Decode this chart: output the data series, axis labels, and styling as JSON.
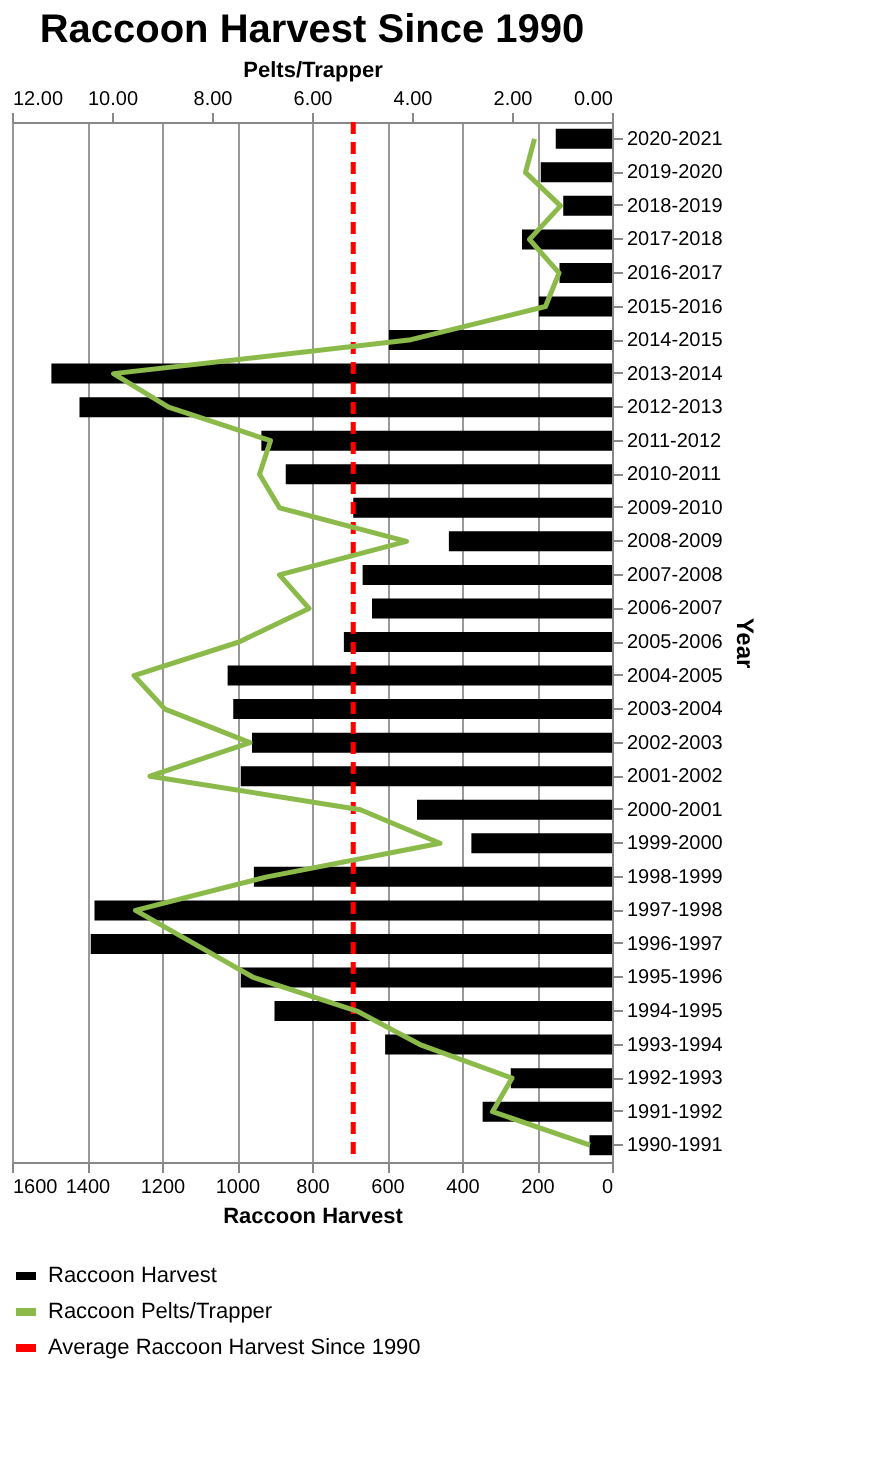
{
  "chart_data": {
    "type": "bar",
    "orientation": "horizontal",
    "title": "Raccoon Harvest Since 1990",
    "xlabel": "Raccoon Harvest",
    "ylabel": "Year",
    "x2label": "Pelts/Trapper",
    "categories": [
      "2020-2021",
      "2019-2020",
      "2018-2019",
      "2017-2018",
      "2016-2017",
      "2015-2016",
      "2014-2015",
      "2013-2014",
      "2012-2013",
      "2011-2012",
      "2010-2011",
      "2009-2010",
      "2008-2009",
      "2007-2008",
      "2006-2007",
      "2005-2006",
      "2004-2005",
      "2003-2004",
      "2002-2003",
      "2001-2002",
      "2000-2001",
      "1999-2000",
      "1998-1999",
      "1997-1998",
      "1996-1997",
      "1995-1996",
      "1994-1995",
      "1993-1994",
      "1992-1993",
      "1991-1992",
      "1990-1991"
    ],
    "series": [
      {
        "name": "Raccoon Harvest",
        "color": "#000000",
        "values": [
          150,
          190,
          130,
          240,
          140,
          195,
          595,
          1495,
          1420,
          935,
          870,
          690,
          435,
          665,
          640,
          715,
          1025,
          1010,
          960,
          990,
          520,
          375,
          955,
          1380,
          1390,
          990,
          900,
          605,
          270,
          345,
          60
        ]
      },
      {
        "name": "Raccoon Pelts/Trapper",
        "type": "line",
        "axis": "x2",
        "color": "#8cba4a",
        "values": [
          1.55,
          1.73,
          1.03,
          1.65,
          1.06,
          1.33,
          4.06,
          9.97,
          8.87,
          6.83,
          7.05,
          6.65,
          4.11,
          6.65,
          6.06,
          7.46,
          9.56,
          8.94,
          7.24,
          9.24,
          5.03,
          3.44,
          6.9,
          9.53,
          8.35,
          7.17,
          5.1,
          3.84,
          2.0,
          2.39,
          0.44
        ]
      }
    ],
    "ref_lines": [
      {
        "axis": "x",
        "value": 690,
        "label": "Average Raccoon Harvest Since 1990",
        "color": "#ff0000",
        "line_style": "dashed"
      }
    ],
    "xlim": [
      1600,
      0
    ],
    "xticks": [
      0,
      200,
      400,
      600,
      800,
      1000,
      1200,
      1400,
      1600
    ],
    "x2lim": [
      12,
      0
    ],
    "x2ticks": [
      {
        "value": 0,
        "label": "0.00"
      },
      {
        "value": 2,
        "label": "2.00"
      },
      {
        "value": 4,
        "label": "4.00"
      },
      {
        "value": 6,
        "label": "6.00"
      },
      {
        "value": 8,
        "label": "8.00"
      },
      {
        "value": 10,
        "label": "10.00"
      },
      {
        "value": 12,
        "label": "12.00"
      }
    ],
    "grid": "x",
    "legend": "bottom"
  }
}
